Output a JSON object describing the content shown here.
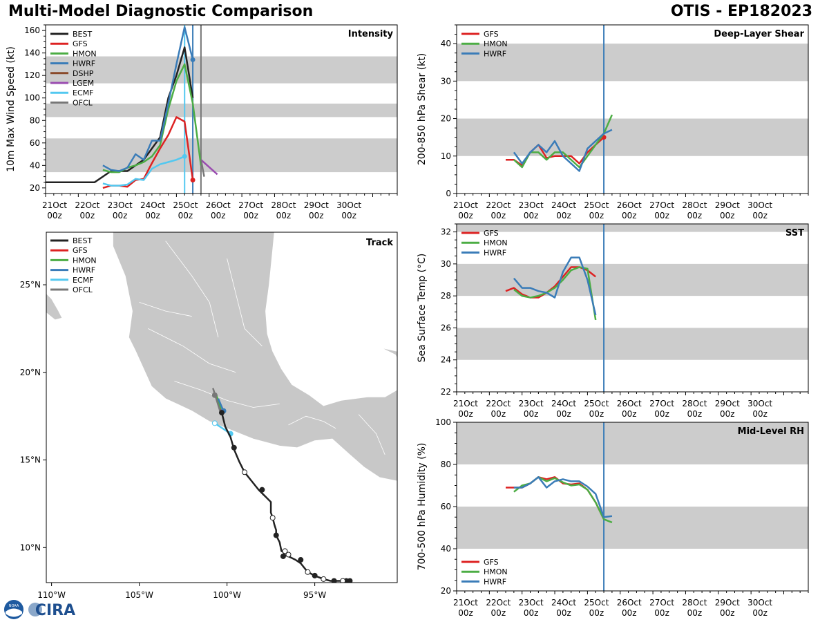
{
  "header": {
    "title": "Multi-Model Diagnostic Comparison",
    "storm": "OTIS - EP182023"
  },
  "logo": {
    "noaa": "NOAA",
    "cira": "CIRA"
  },
  "colors": {
    "BEST": "#222222",
    "GFS": "#dd2222",
    "HMON": "#4cad44",
    "HWRF": "#3a7cb8",
    "DSHP": "#8a4a2a",
    "LGEM": "#9a4bb0",
    "ECMF": "#52c8f0",
    "OFCL": "#777777",
    "band": "#cccccc",
    "land": "#c8c8c8",
    "vline": "#3a7cb8"
  },
  "time_ticks": [
    {
      "day": "21Oct",
      "hour": "00z"
    },
    {
      "day": "22Oct",
      "hour": "00z"
    },
    {
      "day": "23Oct",
      "hour": "00z"
    },
    {
      "day": "24Oct",
      "hour": "00z"
    },
    {
      "day": "25Oct",
      "hour": "00z"
    },
    {
      "day": "26Oct",
      "hour": "00z"
    },
    {
      "day": "27Oct",
      "hour": "00z"
    },
    {
      "day": "28Oct",
      "hour": "00z"
    },
    {
      "day": "29Oct",
      "hour": "00z"
    },
    {
      "day": "30Oct",
      "hour": "00z"
    }
  ],
  "chart_data": [
    {
      "id": "intensity",
      "type": "line",
      "title": "Intensity",
      "ylabel": "10m Max Wind Speed (kt)",
      "xlim": [
        0,
        10.75
      ],
      "ylim": [
        15,
        165
      ],
      "yticks": [
        20,
        40,
        60,
        80,
        100,
        120,
        140,
        160
      ],
      "bands": [
        [
          34,
          64
        ],
        [
          83,
          95
        ],
        [
          113,
          137
        ]
      ],
      "vlines": [
        {
          "x": 4.25,
          "color": "#52c8f0"
        },
        {
          "x": 4.5,
          "color": "#3a7cb8"
        },
        {
          "x": 4.75,
          "color": "#777777"
        }
      ],
      "legend": [
        "BEST",
        "GFS",
        "HMON",
        "HWRF",
        "DSHP",
        "LGEM",
        "ECMF",
        "OFCL"
      ],
      "series": [
        {
          "name": "BEST",
          "x": [
            0,
            1.5,
            2,
            2.25,
            2.5,
            3.0,
            3.25,
            3.5,
            3.75,
            4.0,
            4.25,
            4.5
          ],
          "y": [
            25,
            25,
            35,
            35,
            35,
            45,
            55,
            65,
            100,
            120,
            145,
            100
          ]
        },
        {
          "name": "GFS",
          "x": [
            1.75,
            2.0,
            2.25,
            2.5,
            2.75,
            3.0,
            3.25,
            3.5,
            3.75,
            4.0,
            4.25,
            4.5
          ],
          "y": [
            20,
            22,
            22,
            21,
            27,
            28,
            42,
            55,
            67,
            83,
            79,
            27
          ],
          "end_marker": true
        },
        {
          "name": "HMON",
          "x": [
            1.75,
            2.0,
            2.25,
            2.5,
            2.75,
            3.0,
            3.25,
            3.5,
            3.75,
            4.0,
            4.25,
            4.5,
            4.75
          ],
          "y": [
            36,
            34,
            34,
            38,
            40,
            43,
            48,
            58,
            90,
            115,
            130,
            95,
            40
          ]
        },
        {
          "name": "HWRF",
          "x": [
            1.75,
            2.0,
            2.25,
            2.5,
            2.75,
            3.0,
            3.25,
            3.5,
            3.75,
            4.0,
            4.25,
            4.5
          ],
          "y": [
            40,
            36,
            35,
            38,
            50,
            45,
            62,
            62,
            95,
            130,
            163,
            134
          ],
          "end_marker": true
        },
        {
          "name": "LGEM",
          "x": [
            4.75,
            5.25
          ],
          "y": [
            45,
            32
          ]
        },
        {
          "name": "ECMF",
          "x": [
            1.75,
            2.0,
            2.25,
            2.5,
            2.75,
            3.0,
            3.25,
            3.5,
            3.75,
            4.0,
            4.25
          ],
          "y": [
            24,
            22,
            22,
            23,
            28,
            27,
            37,
            41,
            43,
            45,
            48
          ],
          "end_marker": true
        },
        {
          "name": "OFCL",
          "x": [
            4.75,
            4.85
          ],
          "y": [
            45,
            30
          ]
        }
      ]
    },
    {
      "id": "shear",
      "type": "line",
      "title": "Deep-Layer Shear",
      "ylabel": "200-850 hPa Shear (kt)",
      "xlim": [
        0,
        10.75
      ],
      "ylim": [
        0,
        45
      ],
      "yticks": [
        0,
        10,
        20,
        30,
        40
      ],
      "bands": [
        [
          10,
          20
        ],
        [
          30,
          40
        ]
      ],
      "vlines": [
        {
          "x": 4.5,
          "color": "#3a7cb8"
        }
      ],
      "legend": [
        "GFS",
        "HMON",
        "HWRF"
      ],
      "series": [
        {
          "name": "GFS",
          "x": [
            1.5,
            1.75,
            2.0,
            2.25,
            2.5,
            2.75,
            3.0,
            3.25,
            3.5,
            3.75,
            4.0,
            4.25,
            4.5
          ],
          "y": [
            9,
            9,
            7.5,
            11,
            13,
            9.5,
            10,
            10,
            10,
            8,
            11,
            13,
            15
          ],
          "end_marker": true
        },
        {
          "name": "HMON",
          "x": [
            1.75,
            2.0,
            2.25,
            2.5,
            2.75,
            3.0,
            3.25,
            3.5,
            3.75,
            4.0,
            4.25,
            4.5,
            4.75
          ],
          "y": [
            9,
            7,
            11,
            11,
            9,
            11,
            11,
            9,
            7,
            10,
            13,
            16,
            21
          ]
        },
        {
          "name": "HWRF",
          "x": [
            1.75,
            2.0,
            2.25,
            2.5,
            2.75,
            3.0,
            3.25,
            3.5,
            3.75,
            4.0,
            4.25,
            4.5,
            4.75
          ],
          "y": [
            11,
            8,
            11,
            13,
            11,
            14,
            10,
            8,
            6,
            12,
            14,
            16,
            17
          ]
        }
      ]
    },
    {
      "id": "sst",
      "type": "line",
      "title": "SST",
      "ylabel": "Sea Surface Temp (°C)",
      "xlim": [
        0,
        10.75
      ],
      "ylim": [
        22,
        32.5
      ],
      "yticks": [
        22,
        24,
        26,
        28,
        30,
        32
      ],
      "bands": [
        [
          24,
          26
        ],
        [
          28,
          30
        ],
        [
          32,
          33
        ]
      ],
      "vlines": [
        {
          "x": 4.5,
          "color": "#3a7cb8"
        }
      ],
      "legend": [
        "GFS",
        "HMON",
        "HWRF"
      ],
      "series": [
        {
          "name": "GFS",
          "x": [
            1.5,
            1.75,
            2.0,
            2.25,
            2.5,
            2.75,
            3.0,
            3.25,
            3.5,
            3.75,
            4.0,
            4.25
          ],
          "y": [
            28.3,
            28.5,
            28.1,
            27.9,
            27.9,
            28.2,
            28.6,
            29.2,
            29.8,
            29.8,
            29.6,
            29.2
          ]
        },
        {
          "name": "HMON",
          "x": [
            1.75,
            2.0,
            2.25,
            2.5,
            2.75,
            3.0,
            3.25,
            3.5,
            3.75,
            4.0,
            4.25
          ],
          "y": [
            28.4,
            28.0,
            27.9,
            28.0,
            28.2,
            28.5,
            29.0,
            29.6,
            29.8,
            29.7,
            26.5
          ]
        },
        {
          "name": "HWRF",
          "x": [
            1.75,
            2.0,
            2.25,
            2.5,
            2.75,
            3.0,
            3.25,
            3.5,
            3.75,
            4.0,
            4.25
          ],
          "y": [
            29.1,
            28.5,
            28.5,
            28.3,
            28.2,
            27.9,
            29.5,
            30.4,
            30.4,
            29.0,
            26.8
          ]
        }
      ]
    },
    {
      "id": "rh",
      "type": "line",
      "title": "Mid-Level RH",
      "ylabel": "700-500 hPa Humidity (%)",
      "xlim": [
        0,
        10.75
      ],
      "ylim": [
        20,
        100
      ],
      "yticks": [
        20,
        40,
        60,
        80,
        100
      ],
      "bands": [
        [
          40,
          60
        ],
        [
          80,
          100
        ]
      ],
      "vlines": [
        {
          "x": 4.5,
          "color": "#3a7cb8"
        }
      ],
      "legend": [
        "GFS",
        "HMON",
        "HWRF"
      ],
      "series": [
        {
          "name": "GFS",
          "x": [
            1.5,
            1.75,
            2.0,
            2.25,
            2.5,
            2.75,
            3.0,
            3.25,
            3.5,
            3.75,
            4.0,
            4.25,
            4.5
          ],
          "y": [
            69,
            69,
            69,
            71,
            74,
            73,
            74,
            71,
            70.5,
            71,
            68,
            62,
            54
          ]
        },
        {
          "name": "HMON",
          "x": [
            1.75,
            2.0,
            2.25,
            2.5,
            2.75,
            3.0,
            3.25,
            3.5,
            3.75,
            4.0,
            4.25,
            4.5,
            4.75
          ],
          "y": [
            67,
            70,
            71,
            74,
            72,
            73.5,
            71.5,
            70,
            70.5,
            68,
            62,
            54,
            52.5
          ]
        },
        {
          "name": "HWRF",
          "x": [
            1.75,
            2.0,
            2.25,
            2.5,
            2.75,
            3.0,
            3.25,
            3.5,
            3.75,
            4.0,
            4.25,
            4.5,
            4.75
          ],
          "y": [
            69,
            69,
            71,
            74,
            69,
            72,
            73,
            72,
            72,
            69.5,
            66,
            55,
            55.5
          ]
        }
      ]
    },
    {
      "id": "track",
      "type": "scatter",
      "title": "Track",
      "lon_range": [
        -110.3,
        -90.3
      ],
      "lat_range": [
        8,
        28
      ],
      "xticks": [
        {
          "lon": -110,
          "label": "110°W"
        },
        {
          "lon": -105,
          "label": "105°W"
        },
        {
          "lon": -100,
          "label": "100°W"
        },
        {
          "lon": -95,
          "label": "95°W"
        }
      ],
      "yticks": [
        {
          "lat": 10,
          "label": "10°N"
        },
        {
          "lat": 15,
          "label": "15°N"
        },
        {
          "lat": 20,
          "label": "20°N"
        },
        {
          "lat": 25,
          "label": "25°N"
        }
      ],
      "legend": [
        "BEST",
        "GFS",
        "HMON",
        "HWRF",
        "ECMF",
        "OFCL"
      ],
      "best_track": [
        [
          -93.0,
          8.1
        ],
        [
          -93.3,
          8.1
        ],
        [
          -93.7,
          8.1
        ],
        [
          -94.1,
          8.1
        ],
        [
          -94.5,
          8.2
        ],
        [
          -95.0,
          8.4
        ],
        [
          -95.4,
          8.6
        ],
        [
          -95.8,
          9.1
        ],
        [
          -96.1,
          9.3
        ],
        [
          -96.5,
          9.5
        ],
        [
          -96.8,
          9.6
        ],
        [
          -96.7,
          9.7
        ],
        [
          -96.9,
          9.8
        ],
        [
          -97.0,
          10.3
        ],
        [
          -97.2,
          10.7
        ],
        [
          -97.2,
          11.0
        ],
        [
          -97.3,
          11.3
        ],
        [
          -97.4,
          11.7
        ],
        [
          -97.5,
          12.0
        ],
        [
          -97.5,
          12.6
        ],
        [
          -97.8,
          12.9
        ],
        [
          -98.2,
          13.3
        ],
        [
          -98.6,
          13.8
        ],
        [
          -99.0,
          14.3
        ],
        [
          -99.3,
          14.9
        ],
        [
          -99.6,
          15.6
        ],
        [
          -99.8,
          16.3
        ],
        [
          -100.1,
          16.9
        ],
        [
          -100.3,
          17.7
        ]
      ],
      "best_markers": [
        {
          "lon": -93.0,
          "lat": 8.1,
          "filled": true
        },
        {
          "lon": -93.2,
          "lat": 8.1,
          "filled": true
        },
        {
          "lon": -93.4,
          "lat": 8.1,
          "filled": false
        },
        {
          "lon": -93.9,
          "lat": 8.1,
          "filled": true
        },
        {
          "lon": -94.5,
          "lat": 8.2,
          "filled": false
        },
        {
          "lon": -95.0,
          "lat": 8.4,
          "filled": true
        },
        {
          "lon": -95.4,
          "lat": 8.6,
          "filled": false
        },
        {
          "lon": -95.8,
          "lat": 9.3,
          "filled": true
        },
        {
          "lon": -96.5,
          "lat": 9.6,
          "filled": false
        },
        {
          "lon": -96.7,
          "lat": 9.8,
          "filled": false
        },
        {
          "lon": -96.8,
          "lat": 9.5,
          "filled": true
        },
        {
          "lon": -97.2,
          "lat": 10.7,
          "filled": true
        },
        {
          "lon": -97.4,
          "lat": 11.7,
          "filled": false
        },
        {
          "lon": -98.0,
          "lat": 13.3,
          "filled": true
        },
        {
          "lon": -99.0,
          "lat": 14.3,
          "filled": false
        },
        {
          "lon": -99.6,
          "lat": 15.7,
          "filled": true
        },
        {
          "lon": -100.3,
          "lat": 17.7,
          "filled": true
        }
      ],
      "model_tracks": [
        {
          "name": "ECMF",
          "points": [
            [
              -100.7,
              17.1
            ],
            [
              -99.8,
              16.5
            ]
          ],
          "markers": [
            {
              "lon": -100.7,
              "lat": 17.1,
              "filled": false
            },
            {
              "lon": -99.8,
              "lat": 16.5,
              "filled": true
            }
          ]
        },
        {
          "name": "HMON",
          "points": [
            [
              -100.3,
              17.7
            ],
            [
              -100.6,
              18.7
            ]
          ],
          "markers": []
        },
        {
          "name": "HWRF",
          "points": [
            [
              -100.2,
              17.8
            ],
            [
              -100.5,
              18.5
            ]
          ],
          "markers": [
            {
              "lon": -100.2,
              "lat": 17.8,
              "filled": true
            }
          ]
        },
        {
          "name": "GFS",
          "points": [
            [
              -100.3,
              17.6
            ],
            [
              -100.4,
              17.9
            ]
          ],
          "markers": []
        },
        {
          "name": "OFCL",
          "points": [
            [
              -100.4,
              17.8
            ],
            [
              -100.8,
              19.1
            ]
          ],
          "markers": [
            {
              "lon": -100.7,
              "lat": 18.7,
              "filled": true
            }
          ]
        }
      ]
    }
  ]
}
